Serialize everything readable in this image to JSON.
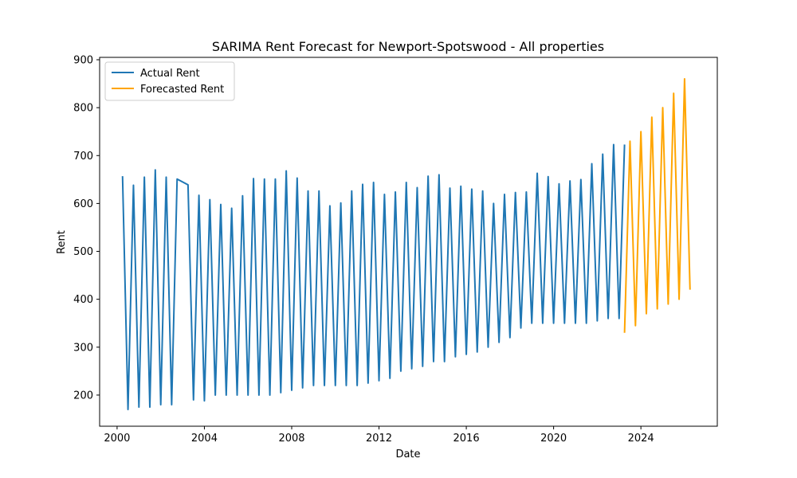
{
  "chart_data": {
    "type": "line",
    "title": "SARIMA Rent Forecast for Newport-Spotswood - All properties",
    "xlabel": "Date",
    "ylabel": "Rent",
    "xlim": [
      1999.2,
      2027.5
    ],
    "ylim": [
      135,
      905
    ],
    "x_ticks": [
      2000,
      2004,
      2008,
      2012,
      2016,
      2020,
      2024
    ],
    "y_ticks": [
      200,
      300,
      400,
      500,
      600,
      700,
      800,
      900
    ],
    "grid": false,
    "legend_position": "upper-left",
    "series": [
      {
        "name": "Actual Rent",
        "color": "#1f77b4",
        "x": [
          2000.25,
          2000.5,
          2000.75,
          2001.0,
          2001.25,
          2001.5,
          2001.75,
          2002.0,
          2002.25,
          2002.5,
          2002.75,
          2003.25,
          2003.5,
          2003.75,
          2004.0,
          2004.25,
          2004.5,
          2004.75,
          2005.0,
          2005.25,
          2005.5,
          2005.75,
          2006.0,
          2006.25,
          2006.5,
          2006.75,
          2007.0,
          2007.25,
          2007.5,
          2007.75,
          2008.0,
          2008.25,
          2008.5,
          2008.75,
          2009.0,
          2009.25,
          2009.5,
          2009.75,
          2010.0,
          2010.25,
          2010.5,
          2010.75,
          2011.0,
          2011.25,
          2011.5,
          2011.75,
          2012.0,
          2012.25,
          2012.5,
          2012.75,
          2013.0,
          2013.25,
          2013.5,
          2013.75,
          2014.0,
          2014.25,
          2014.5,
          2014.75,
          2015.0,
          2015.25,
          2015.5,
          2015.75,
          2016.0,
          2016.25,
          2016.5,
          2016.75,
          2017.0,
          2017.25,
          2017.5,
          2017.75,
          2018.0,
          2018.25,
          2018.5,
          2018.75,
          2019.0,
          2019.25,
          2019.5,
          2019.75,
          2020.0,
          2020.25,
          2020.5,
          2020.75,
          2021.0,
          2021.25,
          2021.5,
          2021.75,
          2022.0,
          2022.25,
          2022.5,
          2022.75,
          2023.0,
          2023.25
        ],
        "y": [
          657,
          170,
          638,
          175,
          655,
          175,
          670,
          180,
          655,
          180,
          651,
          639,
          190,
          617,
          188,
          608,
          200,
          598,
          200,
          590,
          200,
          616,
          200,
          652,
          200,
          651,
          200,
          651,
          205,
          668,
          210,
          653,
          215,
          626,
          220,
          626,
          220,
          595,
          220,
          601,
          220,
          626,
          220,
          640,
          225,
          644,
          230,
          619,
          235,
          624,
          250,
          644,
          255,
          633,
          260,
          657,
          270,
          660,
          270,
          632,
          280,
          636,
          285,
          630,
          290,
          626,
          300,
          600,
          310,
          619,
          320,
          623,
          340,
          624,
          350,
          663,
          350,
          656,
          350,
          641,
          350,
          647,
          350,
          650,
          350,
          683,
          355,
          703,
          360,
          723,
          360,
          723
        ]
      },
      {
        "name": "Forecasted Rent",
        "color": "#ffa500",
        "x": [
          2023.25,
          2023.5,
          2023.75,
          2024.0,
          2024.25,
          2024.5,
          2024.75,
          2025.0,
          2025.25,
          2025.5,
          2025.75,
          2026.0,
          2026.25
        ],
        "y": [
          330,
          730,
          345,
          750,
          370,
          780,
          380,
          800,
          390,
          830,
          400,
          860,
          420
        ],
        "note_hidden": null
      }
    ]
  }
}
